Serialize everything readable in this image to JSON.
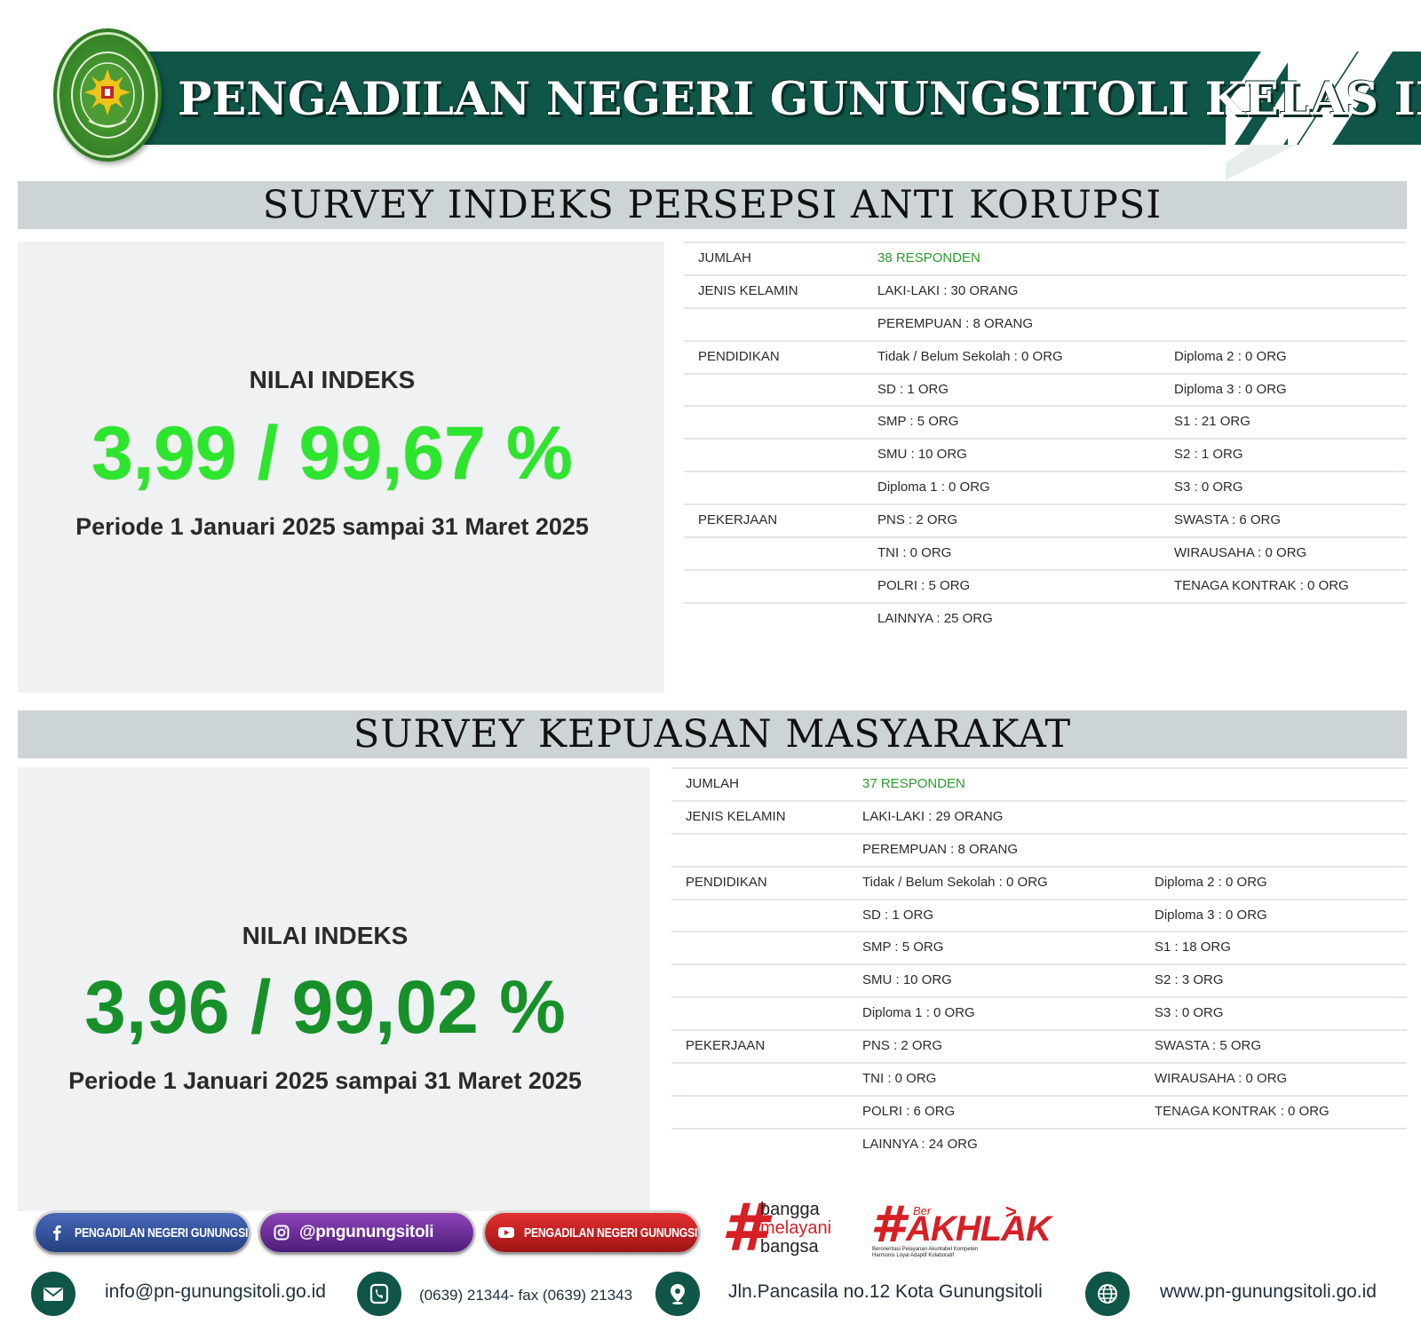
{
  "header": {
    "title": "PENGADILAN NEGERI GUNUNGSITOLI KELAS IB",
    "logo_text": "PENGADILAN NEGERI GUNUNGSITOLI"
  },
  "survey_ipak": {
    "title": "SURVEY INDEKS PERSEPSI ANTI KORUPSI",
    "nilai_label": "NILAI INDEKS",
    "nilai_value": "3,99 / 99,67 %",
    "periode": "Periode 1 Januari 2025 sampai 31 Maret 2025",
    "value_color": "#2ee52e",
    "rows": [
      {
        "label": "JUMLAH",
        "col1": "38 RESPONDEN",
        "col2": ""
      },
      {
        "label": "JENIS KELAMIN",
        "col1": "LAKI-LAKI : 30 ORANG",
        "col2": ""
      },
      {
        "label": "",
        "col1": "PEREMPUAN : 8 ORANG",
        "col2": ""
      },
      {
        "label": "PENDIDIKAN",
        "col1": "Tidak / Belum Sekolah : 0 ORG",
        "col2": "Diploma 2 : 0 ORG"
      },
      {
        "label": "",
        "col1": "SD : 1 ORG",
        "col2": "Diploma 3 : 0 ORG"
      },
      {
        "label": "",
        "col1": "SMP : 5 ORG",
        "col2": "S1 : 21 ORG"
      },
      {
        "label": "",
        "col1": "SMU : 10 ORG",
        "col2": "S2 : 1 ORG"
      },
      {
        "label": "",
        "col1": "Diploma 1 : 0 ORG",
        "col2": "S3 : 0 ORG"
      },
      {
        "label": "PEKERJAAN",
        "col1": "PNS : 2 ORG",
        "col2": "SWASTA : 6 ORG"
      },
      {
        "label": "",
        "col1": "TNI : 0 ORG",
        "col2": "WIRAUSAHA : 0 ORG"
      },
      {
        "label": "",
        "col1": "POLRI : 5 ORG",
        "col2": "TENAGA KONTRAK : 0 ORG"
      },
      {
        "label": "",
        "col1": "LAINNYA : 25 ORG",
        "col2": ""
      }
    ]
  },
  "survey_ikm": {
    "title": "SURVEY KEPUASAN MASYARAKAT",
    "nilai_label": "NILAI INDEKS",
    "nilai_value": "3,96 / 99,02 %",
    "periode": "Periode 1 Januari 2025 sampai 31 Maret 2025",
    "value_color": "#17902a",
    "rows": [
      {
        "label": "JUMLAH",
        "col1": "37 RESPONDEN",
        "col2": ""
      },
      {
        "label": "JENIS KELAMIN",
        "col1": "LAKI-LAKI : 29 ORANG",
        "col2": ""
      },
      {
        "label": "",
        "col1": "PEREMPUAN : 8 ORANG",
        "col2": ""
      },
      {
        "label": "PENDIDIKAN",
        "col1": "Tidak / Belum Sekolah : 0 ORG",
        "col2": "Diploma 2 : 0 ORG"
      },
      {
        "label": "",
        "col1": "SD : 1 ORG",
        "col2": "Diploma 3 : 0 ORG"
      },
      {
        "label": "",
        "col1": "SMP : 5 ORG",
        "col2": "S1 : 18 ORG"
      },
      {
        "label": "",
        "col1": "SMU : 10 ORG",
        "col2": "S2 : 3 ORG"
      },
      {
        "label": "",
        "col1": "Diploma 1 : 0 ORG",
        "col2": "S3 : 0 ORG"
      },
      {
        "label": "PEKERJAAN",
        "col1": "PNS : 2 ORG",
        "col2": "SWASTA : 5 ORG"
      },
      {
        "label": "",
        "col1": "TNI : 0 ORG",
        "col2": "WIRAUSAHA : 0 ORG"
      },
      {
        "label": "",
        "col1": "POLRI : 6 ORG",
        "col2": "TENAGA KONTRAK : 0 ORG"
      },
      {
        "label": "",
        "col1": "LAINNYA : 24 ORG",
        "col2": ""
      }
    ]
  },
  "social": {
    "facebook": "PENGADILAN NEGERI GUNUNGSITOLI",
    "instagram": "@pngunungsitoli",
    "youtube": "PENGADILAN NEGERI GUNUNGSITOLI"
  },
  "slogans": {
    "bangga_hash": "#",
    "bangga_1": "bangga",
    "bangga_2": "melayani",
    "bangga_3": "bangsa",
    "akhlak_hash": "#",
    "akhlak_ber": "Ber",
    "akhlak_word": "AKHLAK",
    "akhlak_sub_1": "Berorientasi Pelayanan Akuntabel Kompeten",
    "akhlak_sub_2": "Harmonis Loyal Adaptif Kolaboratif"
  },
  "contact": {
    "email": "info@pn-gunungsitoli.go.id",
    "phone": "(0639) 21344- fax (0639) 21343",
    "address": "Jln.Pancasila no.12 Kota Gunungsitoli",
    "website": "www.pn-gunungsitoli.go.id"
  },
  "colors": {
    "brand_green": "#0f5548",
    "section_bar": "#cdd4d6",
    "panel_bg": "#eff1f2",
    "accent_red": "#d62026"
  }
}
